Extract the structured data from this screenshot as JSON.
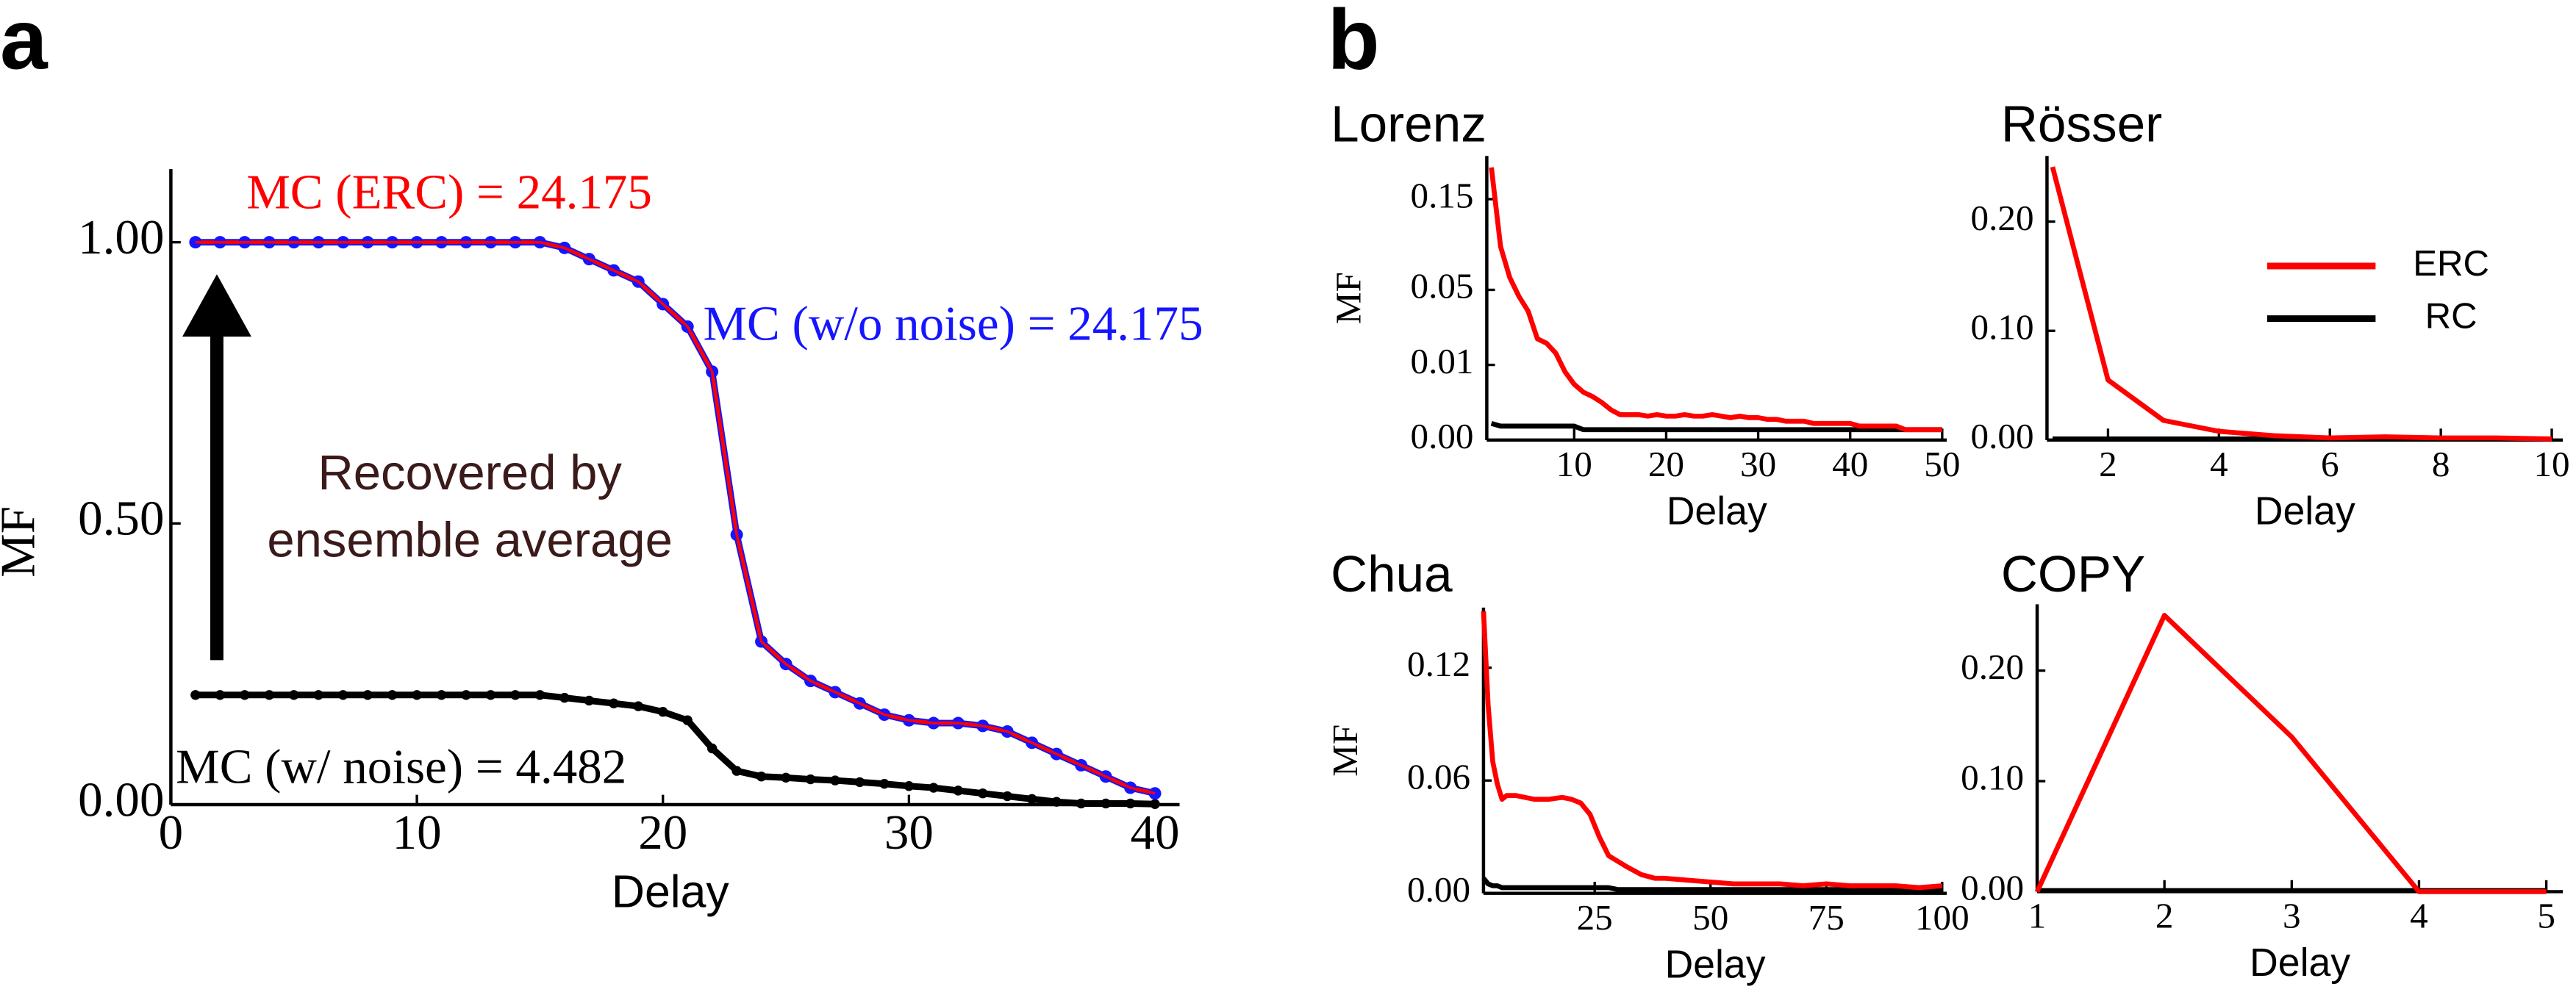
{
  "panel_labels": [
    "a",
    "b"
  ],
  "chart_data": [
    {
      "type": "line",
      "x_label": "Delay",
      "y_label": "MF",
      "x": [
        1,
        2,
        3,
        4,
        5,
        6,
        7,
        8,
        9,
        10,
        11,
        12,
        13,
        14,
        15,
        16,
        17,
        18,
        19,
        20,
        21,
        22,
        23,
        24,
        25,
        26,
        27,
        28,
        29,
        30,
        31,
        32,
        33,
        34,
        35,
        36,
        37,
        38,
        39,
        40
      ],
      "series": [
        {
          "color": "#ff0000",
          "markers": false,
          "values": [
            1,
            1,
            1,
            1,
            1,
            1,
            1,
            1,
            1,
            1,
            1,
            1,
            1,
            1,
            1,
            0.99,
            0.97,
            0.95,
            0.93,
            0.89,
            0.85,
            0.77,
            0.48,
            0.29,
            0.25,
            0.22,
            0.2,
            0.18,
            0.16,
            0.15,
            0.145,
            0.145,
            0.14,
            0.13,
            0.11,
            0.09,
            0.07,
            0.05,
            0.03,
            0.02
          ]
        },
        {
          "color": "#1515ff",
          "markers": true,
          "values": [
            1,
            1,
            1,
            1,
            1,
            1,
            1,
            1,
            1,
            1,
            1,
            1,
            1,
            1,
            1,
            0.99,
            0.97,
            0.95,
            0.93,
            0.89,
            0.85,
            0.77,
            0.48,
            0.29,
            0.25,
            0.22,
            0.2,
            0.18,
            0.16,
            0.15,
            0.145,
            0.145,
            0.14,
            0.13,
            0.11,
            0.09,
            0.07,
            0.05,
            0.03,
            0.02
          ]
        },
        {
          "color": "#000000",
          "markers": true,
          "values": [
            0.195,
            0.195,
            0.195,
            0.195,
            0.195,
            0.195,
            0.195,
            0.195,
            0.195,
            0.195,
            0.195,
            0.195,
            0.195,
            0.195,
            0.195,
            0.19,
            0.185,
            0.18,
            0.175,
            0.165,
            0.15,
            0.1,
            0.06,
            0.05,
            0.048,
            0.045,
            0.043,
            0.04,
            0.037,
            0.033,
            0.03,
            0.025,
            0.02,
            0.015,
            0.01,
            0.005,
            0.002,
            0.002,
            0.002,
            0.001
          ]
        }
      ],
      "xlim": [
        0,
        41
      ],
      "xticks": [
        0,
        10,
        20,
        30,
        40
      ],
      "ylim": [
        0,
        1.13
      ],
      "yticks": [
        {
          "value": 0,
          "label": "0.00"
        },
        {
          "value": 0.5,
          "label": "0.50"
        },
        {
          "value": 1,
          "label": "1.00"
        }
      ],
      "annotations": [
        {
          "text": "MC (ERC) = 24.175",
          "color": "#ff0000"
        },
        {
          "text": "MC (w/o noise) = 24.175",
          "color": "#1515ff"
        },
        {
          "text": "MC (w/ noise) = 4.482",
          "color": "#000000"
        },
        {
          "text": "Recovered by",
          "color": "#3b1a1a"
        },
        {
          "text": "ensemble average",
          "color": "#3b1a1a"
        }
      ]
    },
    {
      "type": "line",
      "title": "Lorenz",
      "x_label": "Delay",
      "y_label": "MF",
      "yscale": "power",
      "yscale_exponent": 0.43,
      "x": [
        1,
        2,
        3,
        4,
        5,
        6,
        7,
        8,
        9,
        10,
        11,
        12,
        13,
        14,
        15,
        16,
        17,
        18,
        19,
        20,
        21,
        22,
        23,
        24,
        25,
        26,
        27,
        28,
        29,
        30,
        31,
        32,
        33,
        34,
        35,
        36,
        37,
        38,
        39,
        40,
        41,
        42,
        43,
        44,
        45,
        46,
        47,
        48,
        49,
        50
      ],
      "series": [
        {
          "color": "#ff0000",
          "values": [
            0.2,
            0.09,
            0.06,
            0.045,
            0.035,
            0.02,
            0.018,
            0.014,
            0.008,
            0.005,
            0.0035,
            0.0028,
            0.002,
            0.0012,
            0.0008,
            0.0008,
            0.0008,
            0.0007,
            0.0008,
            0.0007,
            0.0007,
            0.0008,
            0.0007,
            0.0007,
            0.0008,
            0.0007,
            0.0006,
            0.0007,
            0.0006,
            0.0006,
            0.0005,
            0.0005,
            0.0004,
            0.0004,
            0.0004,
            0.0003,
            0.0003,
            0.0003,
            0.0003,
            0.0003,
            0.0002,
            0.0002,
            0.0002,
            0.0002,
            0.0002,
            0.0001,
            0.0001,
            0.0001,
            0.0001,
            0.0001
          ]
        },
        {
          "color": "#000000",
          "values": [
            0.0003,
            0.0002,
            0.0002,
            0.0002,
            0.0002,
            0.0002,
            0.0002,
            0.0002,
            0.0002,
            0.0002,
            0.0001,
            0.0001,
            0.0001,
            0.0001,
            0.0001,
            0.0001,
            0.0001,
            0.0001,
            0.0001,
            0.0001,
            0.0001,
            0.0001,
            0.0001,
            0.0001,
            0.0001,
            0.0001,
            0.0001,
            0.0001,
            0.0001,
            0.0001,
            0.0001,
            0.0001,
            0.0001,
            0.0001,
            0.0001,
            0.0001,
            0.0001,
            0.0001,
            0.0001,
            0.0001,
            0.0001,
            0.0001,
            0.0001,
            0.0001,
            0.0001,
            0.0001,
            0.0001,
            0.0001,
            0.0001,
            0.0001
          ]
        }
      ],
      "xlim": [
        0.5,
        50.5
      ],
      "xticks": [
        10,
        20,
        30,
        40,
        50
      ],
      "ylim": [
        0,
        0.22
      ],
      "yticks": [
        {
          "value": 0,
          "label": "0.00"
        },
        {
          "value": 0.01,
          "label": "0.01"
        },
        {
          "value": 0.05,
          "label": "0.05"
        },
        {
          "value": 0.15,
          "label": "0.15"
        }
      ]
    },
    {
      "type": "line",
      "title": "Rösser",
      "x_label": "Delay",
      "legend": "upper right",
      "x": [
        1,
        2,
        3,
        4,
        5,
        6,
        7,
        8,
        9,
        10
      ],
      "series": [
        {
          "name": "ERC",
          "color": "#ff0000",
          "values": [
            0.25,
            0.055,
            0.018,
            0.008,
            0.004,
            0.002,
            0.003,
            0.002,
            0.002,
            0.001
          ]
        },
        {
          "name": "RC",
          "color": "#000000",
          "values": [
            0.001,
            0.001,
            0.001,
            0.001,
            0.001,
            0.001,
            0.001,
            0.001,
            0.001,
            0.001
          ]
        }
      ],
      "xlim": [
        0.9,
        10.2
      ],
      "xticks": [
        2,
        4,
        6,
        8,
        10
      ],
      "ylim": [
        0,
        0.26
      ],
      "yticks": [
        {
          "value": 0,
          "label": "0.00"
        },
        {
          "value": 0.1,
          "label": "0.10"
        },
        {
          "value": 0.2,
          "label": "0.20"
        }
      ]
    },
    {
      "type": "line",
      "title": "Chua",
      "x_label": "Delay",
      "y_label": "MF",
      "x": [
        1,
        2,
        3,
        4,
        5,
        6,
        8,
        10,
        12,
        15,
        18,
        20,
        22,
        24,
        26,
        28,
        30,
        32,
        35,
        38,
        40,
        45,
        50,
        55,
        60,
        65,
        70,
        75,
        80,
        85,
        90,
        95,
        100
      ],
      "series": [
        {
          "color": "#ff0000",
          "values": [
            0.15,
            0.1,
            0.07,
            0.058,
            0.05,
            0.052,
            0.052,
            0.051,
            0.05,
            0.05,
            0.051,
            0.05,
            0.048,
            0.042,
            0.03,
            0.02,
            0.017,
            0.014,
            0.01,
            0.008,
            0.008,
            0.007,
            0.006,
            0.005,
            0.005,
            0.005,
            0.004,
            0.005,
            0.004,
            0.004,
            0.004,
            0.003,
            0.004
          ]
        },
        {
          "color": "#000000",
          "values": [
            0.008,
            0.005,
            0.004,
            0.004,
            0.003,
            0.003,
            0.003,
            0.003,
            0.003,
            0.003,
            0.003,
            0.003,
            0.003,
            0.003,
            0.003,
            0.003,
            0.002,
            0.002,
            0.002,
            0.002,
            0.002,
            0.002,
            0.002,
            0.002,
            0.002,
            0.002,
            0.002,
            0.002,
            0.002,
            0.002,
            0.002,
            0.002,
            0.002
          ]
        }
      ],
      "xlim": [
        1,
        101
      ],
      "xticks": [
        25,
        50,
        75,
        100
      ],
      "ylim": [
        0,
        0.152
      ],
      "yticks": [
        {
          "value": 0,
          "label": "0.00"
        },
        {
          "value": 0.06,
          "label": "0.06"
        },
        {
          "value": 0.12,
          "label": "0.12"
        }
      ]
    },
    {
      "type": "line",
      "title": "COPY",
      "x_label": "Delay",
      "x": [
        1,
        2,
        3,
        4,
        5
      ],
      "series": [
        {
          "color": "#ff0000",
          "values": [
            0,
            0.25,
            0.14,
            0,
            0
          ]
        },
        {
          "color": "#000000",
          "values": [
            0.001,
            0.001,
            0.001,
            0.001,
            0.001
          ]
        }
      ],
      "xlim": [
        1,
        5.13
      ],
      "xticks": [
        1,
        2,
        3,
        4,
        5
      ],
      "ylim": [
        0,
        0.26
      ],
      "yticks": [
        {
          "value": 0,
          "label": "0.00"
        },
        {
          "value": 0.1,
          "label": "0.10"
        },
        {
          "value": 0.2,
          "label": "0.20"
        }
      ]
    }
  ]
}
